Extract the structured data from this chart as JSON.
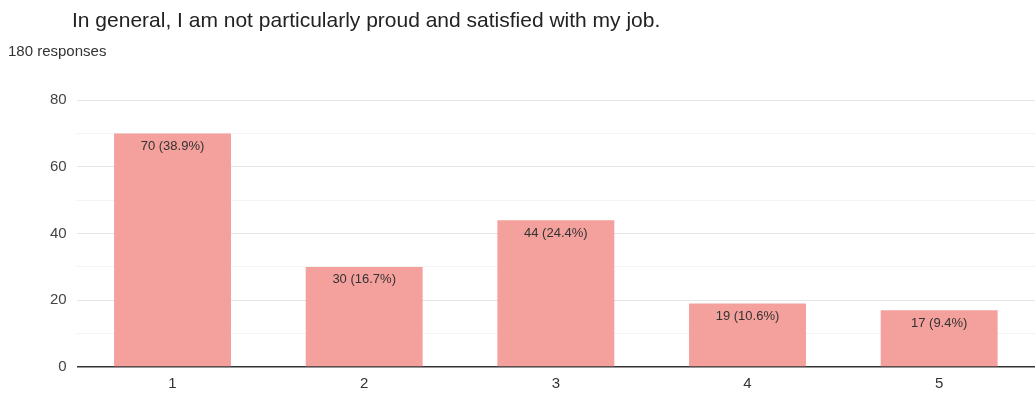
{
  "chart_data": {
    "type": "bar",
    "title": "In general, I am not particularly proud and satisfied with my job.",
    "subtitle": "180 responses",
    "categories": [
      "1",
      "2",
      "3",
      "4",
      "5"
    ],
    "values": [
      70,
      30,
      44,
      19,
      17
    ],
    "value_labels": [
      "70 (38.9%)",
      "30 (16.7%)",
      "44 (24.4%)",
      "19 (10.6%)",
      "17 (9.4%)"
    ],
    "color": "#f4a09c",
    "ylim": [
      0,
      80
    ],
    "yticks": [
      0,
      {
        "value": 10,
        "label": null
      },
      20,
      {
        "value": 30,
        "label": null
      },
      40,
      {
        "value": 50,
        "label": null
      },
      60,
      {
        "value": 70,
        "label": null
      },
      80
    ],
    "grid": "y",
    "legend": false
  }
}
